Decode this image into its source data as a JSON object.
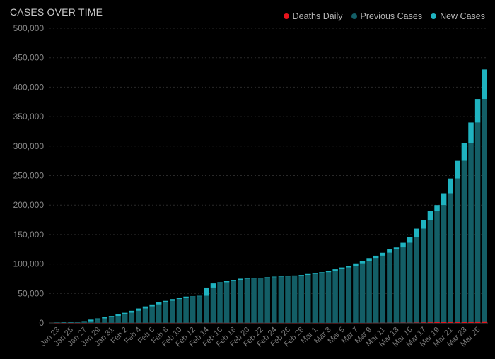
{
  "chart_data": {
    "type": "bar",
    "title": "CASES OVER TIME",
    "ylim": [
      0,
      500000
    ],
    "yticks": [
      0,
      50000,
      100000,
      150000,
      200000,
      250000,
      300000,
      350000,
      400000,
      450000,
      500000
    ],
    "ytick_labels": [
      "0",
      "50,000",
      "100,000",
      "150,000",
      "200,000",
      "250,000",
      "300,000",
      "350,000",
      "400,000",
      "450,000",
      "500,000"
    ],
    "grid": true,
    "legend_position": "top-right",
    "series": [
      {
        "name": "Deaths Daily",
        "color": "#e8141c"
      },
      {
        "name": "Previous Cases",
        "color": "#135e66"
      },
      {
        "name": "New Cases",
        "color": "#1fb3c0"
      }
    ],
    "categories": [
      "Jan 23",
      "Jan 24",
      "Jan 25",
      "Jan 26",
      "Jan 27",
      "Jan 28",
      "Jan 29",
      "Jan 30",
      "Jan 31",
      "Feb 1",
      "Feb 2",
      "Feb 3",
      "Feb 4",
      "Feb 5",
      "Feb 6",
      "Feb 7",
      "Feb 8",
      "Feb 9",
      "Feb 10",
      "Feb 11",
      "Feb 12",
      "Feb 13",
      "Feb 14",
      "Feb 15",
      "Feb 16",
      "Feb 17",
      "Feb 18",
      "Feb 19",
      "Feb 20",
      "Feb 21",
      "Feb 22",
      "Feb 23",
      "Feb 24",
      "Feb 25",
      "Feb 26",
      "Feb 27",
      "Feb 28",
      "Feb 29",
      "Mar 1",
      "Mar 2",
      "Mar 3",
      "Mar 4",
      "Mar 5",
      "Mar 6",
      "Mar 7",
      "Mar 8",
      "Mar 9",
      "Mar 10",
      "Mar 11",
      "Mar 12",
      "Mar 13",
      "Mar 14",
      "Mar 15",
      "Mar 16",
      "Mar 17",
      "Mar 18",
      "Mar 19",
      "Mar 20",
      "Mar 21",
      "Mar 22",
      "Mar 23",
      "Mar 24",
      "Mar 25",
      "Mar 26"
    ],
    "xtick_labels": [
      "Jan 23",
      "Jan 25",
      "Jan 27",
      "Jan 29",
      "Jan 31",
      "Feb 2",
      "Feb 4",
      "Feb 6",
      "Feb 8",
      "Feb 10",
      "Feb 12",
      "Feb 14",
      "Feb 16",
      "Feb 18",
      "Feb 20",
      "Feb 22",
      "Feb 24",
      "Feb 26",
      "Feb 28",
      "Mar 1",
      "Mar 3",
      "Mar 5",
      "Mar 7",
      "Mar 9",
      "Mar 11",
      "Mar 13",
      "Mar 15",
      "Mar 17",
      "Mar 19",
      "Mar 21",
      "Mar 23",
      "Mar 25"
    ],
    "previous_cases": [
      0,
      500,
      900,
      1400,
      2000,
      2900,
      5600,
      7700,
      9700,
      11800,
      14500,
      17200,
      20600,
      24500,
      28000,
      31400,
      34800,
      37500,
      40500,
      42700,
      44700,
      45200,
      46000,
      60000,
      67000,
      69000,
      71000,
      73000,
      75000,
      75500,
      76000,
      76500,
      77500,
      78500,
      79000,
      79500,
      80500,
      81500,
      83000,
      84500,
      86000,
      88000,
      91000,
      94000,
      97000,
      101000,
      105000,
      110000,
      114000,
      119000,
      125000,
      128000,
      136000,
      146000,
      160000,
      175000,
      190000,
      200000,
      220000,
      245000,
      275000,
      305000,
      340000,
      380000
    ],
    "new_cases": [
      500,
      400,
      500,
      600,
      900,
      2700,
      2100,
      2000,
      2100,
      2700,
      2700,
      3400,
      3900,
      3500,
      3400,
      3400,
      2700,
      3000,
      2200,
      2000,
      500,
      800,
      14000,
      7000,
      2000,
      2000,
      2000,
      2000,
      500,
      500,
      500,
      1000,
      1000,
      500,
      500,
      1000,
      1000,
      1500,
      1500,
      1500,
      2000,
      3000,
      3000,
      3000,
      4000,
      4000,
      5000,
      4000,
      5000,
      6000,
      3000,
      8000,
      10000,
      14000,
      15000,
      15000,
      10000,
      20000,
      25000,
      30000,
      30000,
      35000,
      40000,
      50000
    ],
    "deaths_daily": [
      17,
      1,
      8,
      16,
      14,
      26,
      26,
      38,
      43,
      46,
      45,
      57,
      64,
      66,
      73,
      73,
      86,
      89,
      97,
      108,
      97,
      254,
      121,
      143,
      142,
      105,
      98,
      136,
      114,
      118,
      109,
      97,
      150,
      71,
      52,
      29,
      44,
      47,
      35,
      42,
      31,
      38,
      31,
      30,
      41,
      46,
      110,
      185,
      250,
      314,
      350,
      445,
      350,
      650,
      850,
      1000,
      1350,
      1600,
      1700,
      1780,
      1850,
      2000,
      2500,
      2700
    ]
  }
}
